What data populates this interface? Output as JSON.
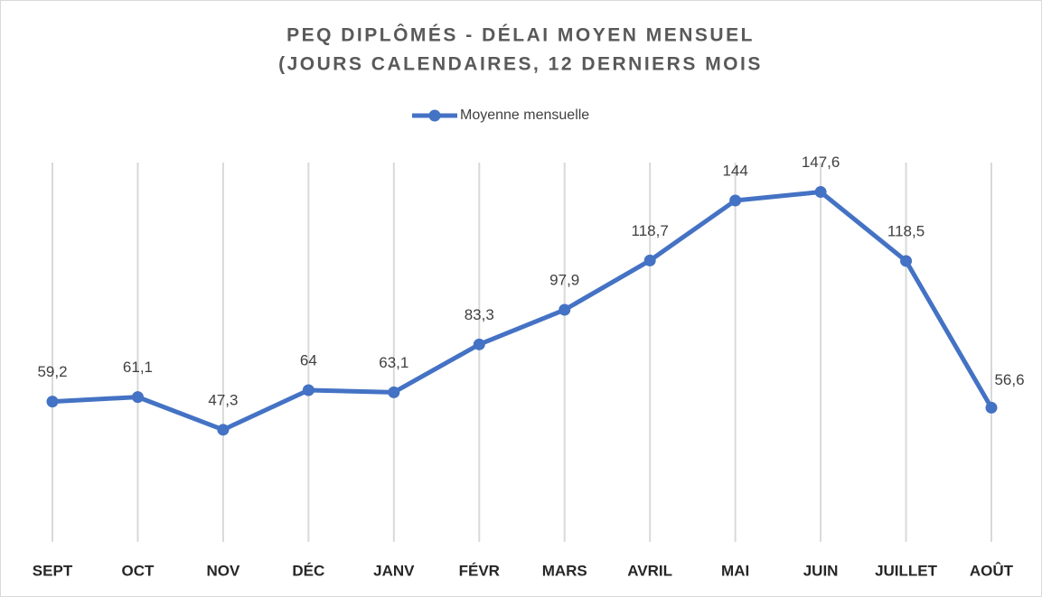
{
  "chart_data": {
    "type": "line",
    "title": [
      "PEQ DIPLÔMÉS - DÉLAI MOYEN MENSUEL",
      "(JOURS CALENDAIRES, 12 DERNIERS MOIS"
    ],
    "categories": [
      "SEPT",
      "OCT",
      "NOV",
      "DÉC",
      "JANV",
      "FÉVR",
      "MARS",
      "AVRIL",
      "MAI",
      "JUIN",
      "JUILLET",
      "AOÛT"
    ],
    "series": [
      {
        "name": "Moyenne mensuelle",
        "color": "#4472c4",
        "values": [
          59.2,
          61.1,
          47.3,
          64,
          63.1,
          83.3,
          97.9,
          118.7,
          144,
          147.6,
          118.5,
          56.6
        ],
        "value_labels": [
          "59,2",
          "61,1",
          "47,3",
          "64",
          "63,1",
          "83,3",
          "97,9",
          "118,7",
          "144",
          "147,6",
          "118,5",
          "56,6"
        ]
      }
    ],
    "ylim": [
      0,
      160
    ],
    "grid": true,
    "legend": "top"
  }
}
